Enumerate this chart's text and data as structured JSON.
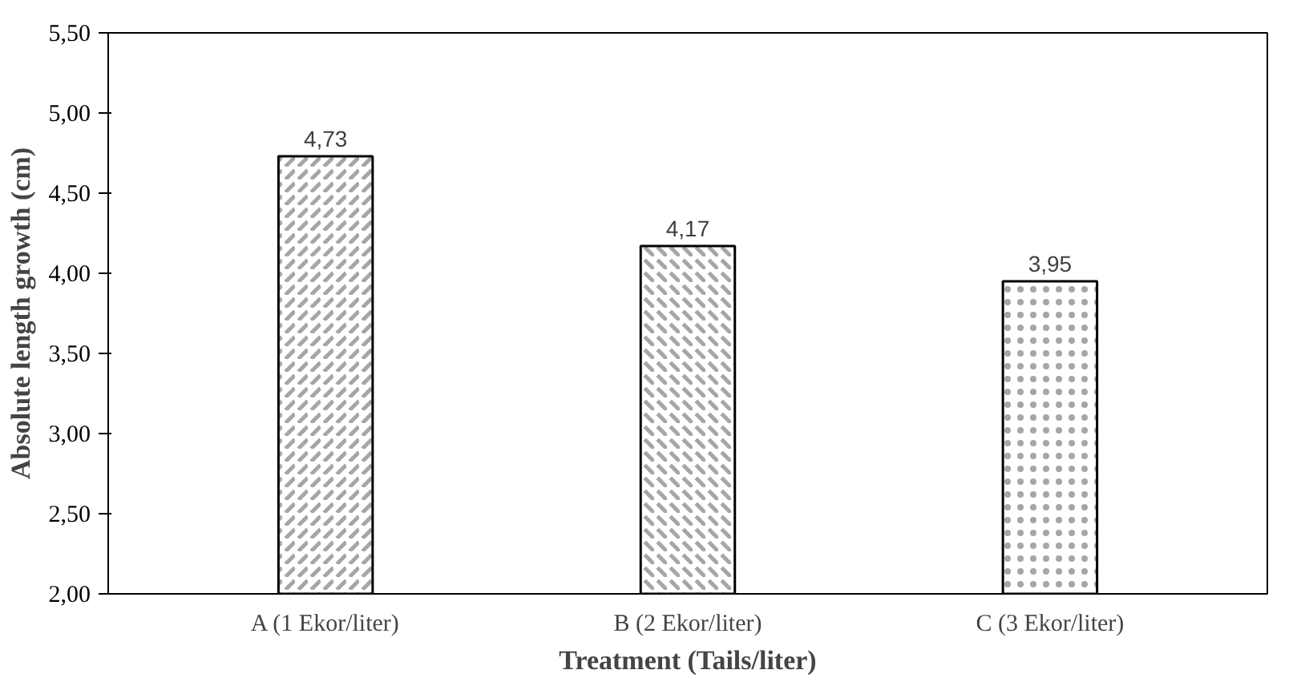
{
  "chart_data": {
    "type": "bar",
    "xlabel": "Treatment (Tails/liter)",
    "ylabel": "Absolute length growth (cm)",
    "categories": [
      "A (1 Ekor/liter)",
      "B (2 Ekor/liter)",
      "C (3 Ekor/liter)"
    ],
    "values": [
      4.73,
      4.17,
      3.95
    ],
    "value_labels": [
      "4,73",
      "4,17",
      "3,95"
    ],
    "colors": [
      "#000000",
      "#000000",
      "#000000"
    ],
    "ylim": [
      2,
      5.5
    ],
    "yticks": [
      {
        "value": 2,
        "label": "2,00"
      },
      {
        "value": 2.5,
        "label": "2,50"
      },
      {
        "value": 3,
        "label": "3,00"
      },
      {
        "value": 3.5,
        "label": "3,50"
      },
      {
        "value": 4,
        "label": "4,00"
      },
      {
        "value": 4.5,
        "label": "4,50"
      },
      {
        "value": 5,
        "label": "5,00"
      },
      {
        "value": 5.5,
        "label": "5,50"
      }
    ],
    "grid": false
  }
}
